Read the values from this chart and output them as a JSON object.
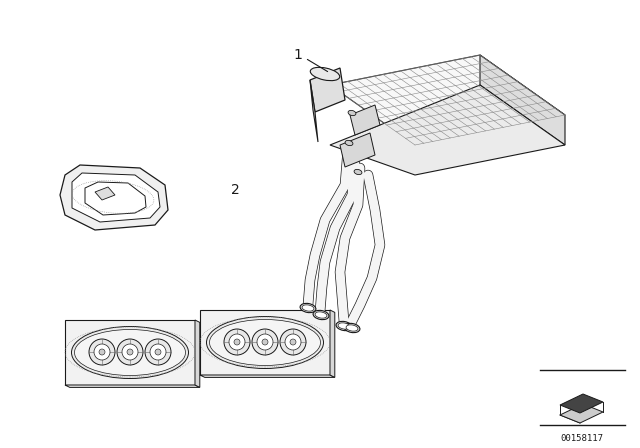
{
  "background_color": "#ffffff",
  "line_color": "#1a1a1a",
  "label_1": "1",
  "label_2": "2",
  "part_number": "00158117",
  "fig_width": 6.4,
  "fig_height": 4.48,
  "dpi": 100
}
